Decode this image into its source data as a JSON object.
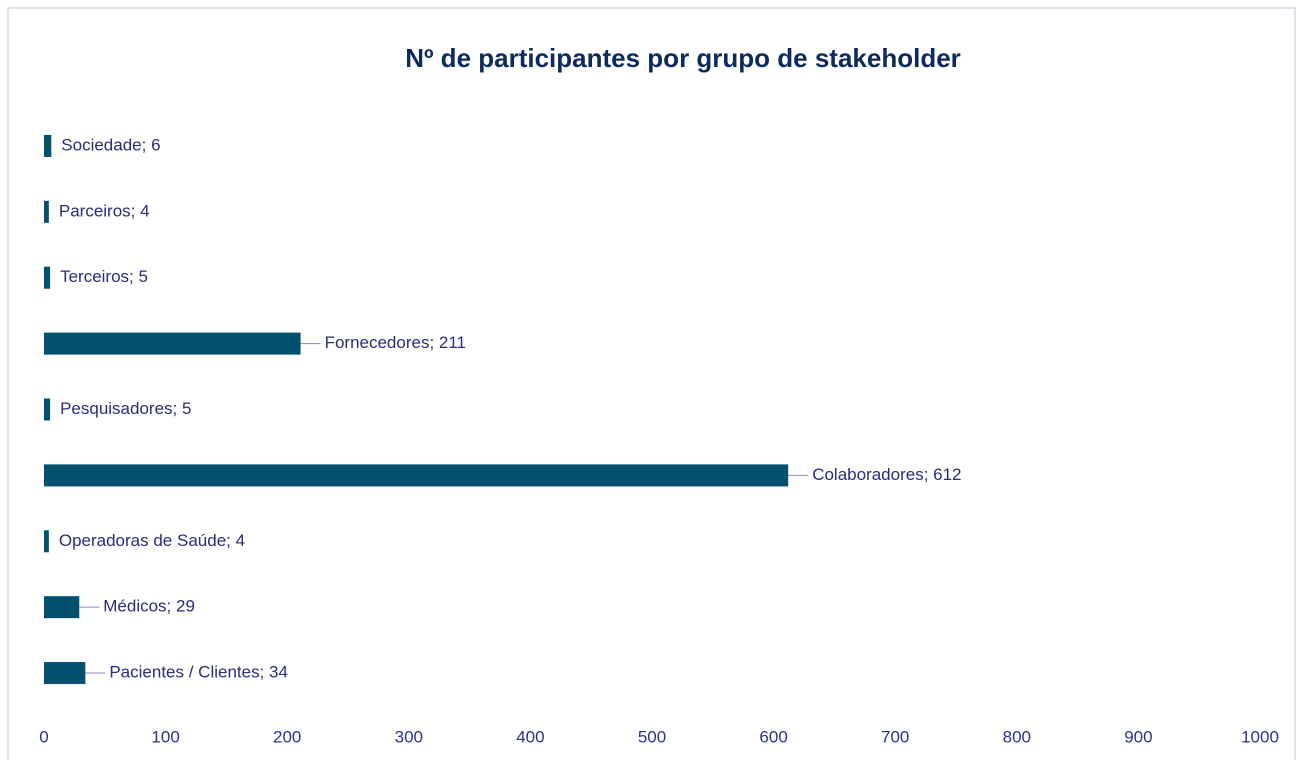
{
  "chart_data": {
    "type": "bar",
    "orientation": "horizontal",
    "title": "Nº de participantes por grupo de stakeholder",
    "values": [
      6,
      4,
      5,
      211,
      5,
      612,
      4,
      29,
      34
    ],
    "value_labels": [
      "Sociedade; 6",
      "Parceiros; 4",
      "Terceiros; 5",
      "Fornecedores; 211",
      "Pesquisadores; 5",
      "Colaboradores; 612",
      "Operadoras de Saúde; 4",
      "Médicos; 29",
      "Pacientes / Clientes; 34"
    ],
    "color": "#00506e",
    "xlim": [
      0,
      1000
    ],
    "xticks": [
      0,
      100,
      200,
      300,
      400,
      500,
      600,
      700,
      800,
      900,
      1000
    ],
    "grid": false
  }
}
